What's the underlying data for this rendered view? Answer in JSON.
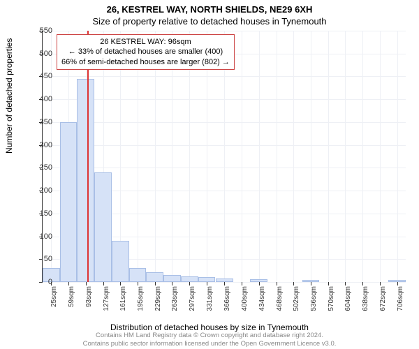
{
  "titles": {
    "line1": "26, KESTREL WAY, NORTH SHIELDS, NE29 6XH",
    "line2": "Size of property relative to detached houses in Tynemouth"
  },
  "ylabel": "Number of detached properties",
  "xlabel": "Distribution of detached houses by size in Tynemouth",
  "footer": {
    "line1": "Contains HM Land Registry data © Crown copyright and database right 2024.",
    "line2": "Contains public sector information licensed under the Open Government Licence v3.0."
  },
  "callout": {
    "line1": "26 KESTREL WAY: 96sqm",
    "line2": "← 33% of detached houses are smaller (400)",
    "line3": "66% of semi-detached houses are larger (802) →"
  },
  "chart": {
    "type": "histogram",
    "background_color": "#ffffff",
    "grid_color": "#eef0f5",
    "bar_fill": "#d6e2f7",
    "bar_border": "#a9bfe6",
    "marker_line_color": "#d33",
    "marker_x": 96,
    "ylim": [
      0,
      550
    ],
    "ytick_step": 50,
    "xlim": [
      8,
      723
    ],
    "x_ticks": [
      25,
      59,
      93,
      127,
      161,
      195,
      229,
      263,
      297,
      331,
      366,
      400,
      434,
      468,
      502,
      536,
      570,
      604,
      638,
      672,
      706
    ],
    "x_tick_suffix": "sqm",
    "bin_width": 34,
    "bars": [
      {
        "x": 25,
        "y": 30
      },
      {
        "x": 59,
        "y": 350
      },
      {
        "x": 93,
        "y": 445
      },
      {
        "x": 127,
        "y": 240
      },
      {
        "x": 161,
        "y": 90
      },
      {
        "x": 195,
        "y": 30
      },
      {
        "x": 229,
        "y": 22
      },
      {
        "x": 263,
        "y": 15
      },
      {
        "x": 297,
        "y": 12
      },
      {
        "x": 331,
        "y": 10
      },
      {
        "x": 366,
        "y": 8
      },
      {
        "x": 400,
        "y": 0
      },
      {
        "x": 434,
        "y": 6
      },
      {
        "x": 468,
        "y": 0
      },
      {
        "x": 502,
        "y": 0
      },
      {
        "x": 536,
        "y": 5
      },
      {
        "x": 570,
        "y": 0
      },
      {
        "x": 604,
        "y": 0
      },
      {
        "x": 638,
        "y": 0
      },
      {
        "x": 672,
        "y": 0
      },
      {
        "x": 706,
        "y": 5
      }
    ],
    "title_fontsize": 13,
    "label_fontsize": 12,
    "tick_fontsize": 11
  }
}
